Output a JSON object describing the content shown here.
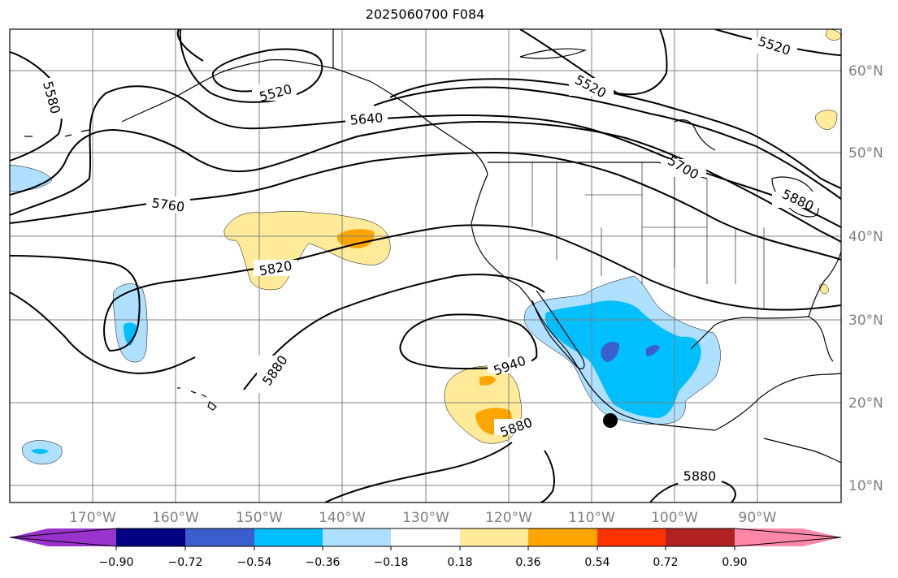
{
  "title": "2025060700 F084",
  "map": {
    "projection": "PlateCarree",
    "extent_lon": [
      -180,
      -80
    ],
    "extent_lat": [
      8,
      65
    ],
    "lat_ticks": [
      "10°N",
      "20°N",
      "30°N",
      "40°N",
      "50°N",
      "60°N"
    ],
    "lon_ticks": [
      "170°W",
      "160°W",
      "150°W",
      "140°W",
      "130°W",
      "120°W",
      "110°W",
      "100°W",
      "90°W"
    ],
    "contour_labels": [
      "5520",
      "5520",
      "5520",
      "5580",
      "5640",
      "5700",
      "5760",
      "5820",
      "5880",
      "5880",
      "5880",
      "5940",
      "5880",
      "5880"
    ],
    "marker": "black-dot"
  },
  "colorbar": {
    "tick_labels": [
      "−0.90",
      "−0.72",
      "−0.54",
      "−0.36",
      "−0.18",
      "0.18",
      "0.36",
      "0.54",
      "0.72",
      "0.90"
    ],
    "colors": [
      "#9933cc",
      "#000080",
      "#3a5fcd",
      "#00bfff",
      "#b0e0ff",
      "#ffffff",
      "#ffeb99",
      "#ffa500",
      "#ff3300",
      "#b22222",
      "#ff88aa"
    ]
  }
}
